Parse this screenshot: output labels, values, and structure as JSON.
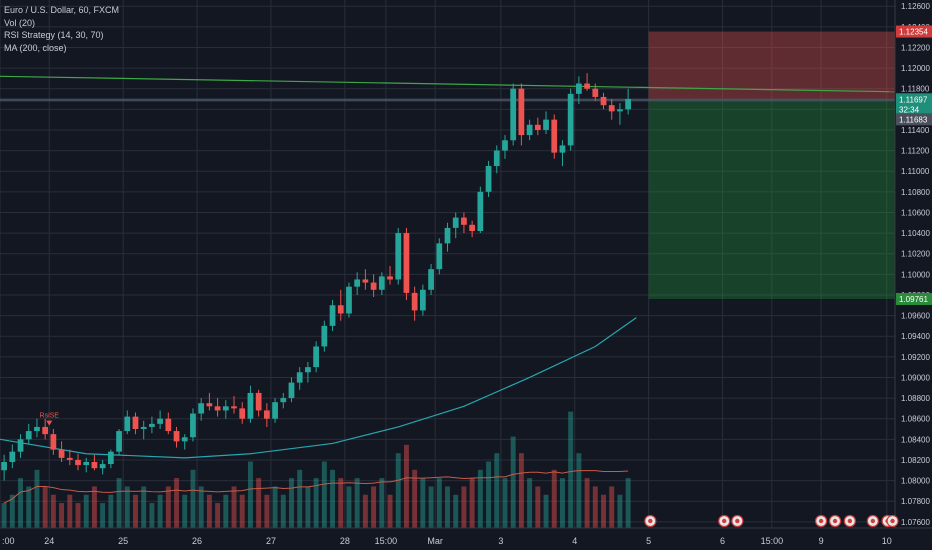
{
  "legend": {
    "symbol_line": "Euro / U.S. Dollar, 60, FXCM",
    "indicator_vol": "Vol (20)",
    "indicator_rsi": "RSI Strategy (14, 30, 70)",
    "indicator_ma": "MA (200, close)"
  },
  "colors": {
    "background": "#131722",
    "grid": "#2a2e39",
    "up_candle": "#26a69a",
    "down_candle": "#ef5350",
    "ma_line": "#26a6b0",
    "trend_line": "#3fa64a",
    "vol_ma": "#c75b4a",
    "stop_zone": "#ef5350",
    "target_zone": "#26a63a",
    "axis_text": "#c8ccd6"
  },
  "chart_data": {
    "type": "candlestick",
    "symbol": "EURUSD",
    "interval": "60",
    "ylim": [
      1.0754,
      1.1266
    ],
    "y_ticks": [
      "1.12600",
      "1.12400",
      "1.12200",
      "1.12000",
      "1.11800",
      "1.11600",
      "1.11400",
      "1.11200",
      "1.11000",
      "1.10800",
      "1.10600",
      "1.10400",
      "1.10200",
      "1.10000",
      "1.09800",
      "1.09600",
      "1.09400",
      "1.09200",
      "1.09000",
      "1.08800",
      "1.08600",
      "1.08400",
      "1.08200",
      "1.08000",
      "1.07800",
      "1.07600"
    ],
    "y_tick_values": [
      1.126,
      1.124,
      1.122,
      1.12,
      1.118,
      1.116,
      1.114,
      1.112,
      1.11,
      1.108,
      1.106,
      1.104,
      1.102,
      1.1,
      1.098,
      1.096,
      1.094,
      1.092,
      1.09,
      1.088,
      1.086,
      1.084,
      1.082,
      1.08,
      1.078,
      1.076
    ],
    "x_labels": [
      {
        "label": ":00",
        "x": -0.5
      },
      {
        "label": "24",
        "x": 5.5
      },
      {
        "label": "25",
        "x": 14.5
      },
      {
        "label": "26",
        "x": 23.5
      },
      {
        "label": "27",
        "x": 32.5
      },
      {
        "label": "28",
        "x": 41.5
      },
      {
        "label": "15:00",
        "x": 46.5
      },
      {
        "label": "Mar",
        "x": 52.5
      },
      {
        "label": "3",
        "x": 60.5
      },
      {
        "label": "4",
        "x": 69.5
      },
      {
        "label": "5",
        "x": 78.5
      },
      {
        "label": "6",
        "x": 87.5
      },
      {
        "label": "15:00",
        "x": 93.5
      },
      {
        "label": "9",
        "x": 99.5
      },
      {
        "label": "10",
        "x": 107.5
      }
    ],
    "x_range": [
      -0.5,
      108.5
    ],
    "candles": [
      [
        1.081,
        1.0825,
        1.08,
        1.0818
      ],
      [
        1.0818,
        1.0835,
        1.0812,
        1.0828
      ],
      [
        1.0828,
        1.0845,
        1.0822,
        1.084
      ],
      [
        1.084,
        1.0855,
        1.0835,
        1.0848
      ],
      [
        1.0848,
        1.086,
        1.0842,
        1.0852
      ],
      [
        1.0852,
        1.086,
        1.084,
        1.0845
      ],
      [
        1.0845,
        1.085,
        1.0825,
        1.083
      ],
      [
        1.083,
        1.0838,
        1.0818,
        1.0822
      ],
      [
        1.0822,
        1.083,
        1.0815,
        1.082
      ],
      [
        1.082,
        1.0826,
        1.081,
        1.0815
      ],
      [
        1.0815,
        1.0822,
        1.0808,
        1.0818
      ],
      [
        1.0818,
        1.0825,
        1.081,
        1.0812
      ],
      [
        1.0812,
        1.082,
        1.0806,
        1.0816
      ],
      [
        1.0816,
        1.083,
        1.0812,
        1.0828
      ],
      [
        1.0828,
        1.085,
        1.0825,
        1.0848
      ],
      [
        1.0848,
        1.0868,
        1.0845,
        1.0862
      ],
      [
        1.0862,
        1.0866,
        1.0845,
        1.085
      ],
      [
        1.085,
        1.0858,
        1.084,
        1.0852
      ],
      [
        1.0852,
        1.0862,
        1.0846,
        1.0855
      ],
      [
        1.0855,
        1.0868,
        1.085,
        1.086
      ],
      [
        1.086,
        1.0866,
        1.0845,
        1.0848
      ],
      [
        1.0848,
        1.0852,
        1.0832,
        1.0838
      ],
      [
        1.0838,
        1.0845,
        1.083,
        1.0842
      ],
      [
        1.0842,
        1.087,
        1.0838,
        1.0865
      ],
      [
        1.0865,
        1.088,
        1.0858,
        1.0875
      ],
      [
        1.0875,
        1.0885,
        1.0868,
        1.0872
      ],
      [
        1.0872,
        1.088,
        1.0862,
        1.0868
      ],
      [
        1.0868,
        1.0878,
        1.086,
        1.0872
      ],
      [
        1.0872,
        1.0882,
        1.0865,
        1.087
      ],
      [
        1.087,
        1.0876,
        1.0855,
        1.086
      ],
      [
        1.086,
        1.0892,
        1.0856,
        1.0885
      ],
      [
        1.0885,
        1.0888,
        1.0862,
        1.0868
      ],
      [
        1.0868,
        1.0875,
        1.0852,
        1.086
      ],
      [
        1.086,
        1.088,
        1.0856,
        1.0876
      ],
      [
        1.0876,
        1.0885,
        1.087,
        1.088
      ],
      [
        1.088,
        1.09,
        1.0876,
        1.0895
      ],
      [
        1.0895,
        1.091,
        1.0888,
        1.0905
      ],
      [
        1.0905,
        1.0915,
        1.0895,
        1.091
      ],
      [
        1.091,
        1.0935,
        1.0905,
        1.093
      ],
      [
        1.093,
        1.0955,
        1.0925,
        1.095
      ],
      [
        1.095,
        1.0975,
        1.0945,
        1.097
      ],
      [
        1.097,
        1.0985,
        1.0955,
        1.0962
      ],
      [
        1.0962,
        1.0992,
        1.0958,
        1.0988
      ],
      [
        1.0988,
        1.1002,
        1.098,
        1.0995
      ],
      [
        1.0995,
        1.1005,
        1.0985,
        1.0992
      ],
      [
        1.0992,
        1.1,
        1.0978,
        1.0985
      ],
      [
        1.0985,
        1.1002,
        1.098,
        1.0998
      ],
      [
        1.0998,
        1.1008,
        1.099,
        1.0995
      ],
      [
        1.0995,
        1.1045,
        1.099,
        1.104
      ],
      [
        1.104,
        1.1045,
        1.0975,
        1.0982
      ],
      [
        1.0982,
        1.0988,
        1.0955,
        1.0965
      ],
      [
        1.0965,
        1.099,
        1.096,
        1.0985
      ],
      [
        1.0985,
        1.101,
        1.098,
        1.1005
      ],
      [
        1.1005,
        1.1035,
        1.1,
        1.103
      ],
      [
        1.103,
        1.105,
        1.1022,
        1.1045
      ],
      [
        1.1045,
        1.106,
        1.1035,
        1.1055
      ],
      [
        1.1055,
        1.106,
        1.104,
        1.1048
      ],
      [
        1.1048,
        1.1052,
        1.1036,
        1.1042
      ],
      [
        1.1042,
        1.1085,
        1.104,
        1.108
      ],
      [
        1.108,
        1.111,
        1.1075,
        1.1105
      ],
      [
        1.1105,
        1.1125,
        1.1098,
        1.112
      ],
      [
        1.112,
        1.1135,
        1.1112,
        1.113
      ],
      [
        1.113,
        1.1185,
        1.1125,
        1.118
      ],
      [
        1.118,
        1.1185,
        1.1125,
        1.1135
      ],
      [
        1.1135,
        1.115,
        1.113,
        1.1145
      ],
      [
        1.1145,
        1.1152,
        1.1135,
        1.114
      ],
      [
        1.114,
        1.1158,
        1.1136,
        1.115
      ],
      [
        1.115,
        1.1155,
        1.1112,
        1.1118
      ],
      [
        1.1118,
        1.113,
        1.1105,
        1.1125
      ],
      [
        1.1125,
        1.118,
        1.112,
        1.1175
      ],
      [
        1.1175,
        1.1192,
        1.1165,
        1.1185
      ],
      [
        1.1185,
        1.1195,
        1.1178,
        1.118
      ],
      [
        1.118,
        1.1185,
        1.1168,
        1.1172
      ],
      [
        1.1172,
        1.1176,
        1.116,
        1.1164
      ],
      [
        1.1164,
        1.117,
        1.115,
        1.1158
      ],
      [
        1.1158,
        1.1166,
        1.1145,
        1.116
      ],
      [
        1.116,
        1.118,
        1.1155,
        1.117
      ]
    ],
    "volume": [
      3,
      4,
      6,
      5,
      7,
      5,
      4,
      3,
      4,
      3,
      4,
      5,
      3,
      4,
      6,
      5,
      4,
      5,
      3,
      4,
      5,
      6,
      4,
      7,
      5,
      4,
      3,
      4,
      5,
      4,
      8,
      6,
      4,
      5,
      4,
      6,
      7,
      5,
      6,
      8,
      7,
      6,
      5,
      6,
      4,
      5,
      6,
      4,
      9,
      10,
      7,
      6,
      5,
      6,
      5,
      4,
      5,
      6,
      7,
      8,
      9,
      6,
      11,
      9,
      6,
      5,
      4,
      7,
      6,
      14,
      9,
      6,
      5,
      4,
      5,
      4,
      6
    ],
    "vol_ylim": [
      0,
      16
    ],
    "ma_200": [
      [
        -0.5,
        1.084
      ],
      [
        10,
        1.0826
      ],
      [
        22,
        1.0822
      ],
      [
        30,
        1.0826
      ],
      [
        40,
        1.0836
      ],
      [
        48,
        1.0852
      ],
      [
        56,
        1.0872
      ],
      [
        64,
        1.09
      ],
      [
        72,
        1.093
      ],
      [
        77,
        1.0958
      ]
    ],
    "trend_line": [
      [
        -0.5,
        1.1192
      ],
      [
        108.5,
        1.1177
      ]
    ],
    "horizontal_lines": [
      1.11697,
      1.11683
    ],
    "position": {
      "x_start": 78.5,
      "x_end": 108.5,
      "entry": 1.11697,
      "stop": 1.12354,
      "target": 1.09761
    },
    "price_labels": [
      {
        "value": "1.12354",
        "y": 1.12354,
        "color": "#d03b3b"
      },
      {
        "value": "1.11697",
        "y": 1.11697,
        "color": "#1e8f7a"
      },
      {
        "value": "32:34",
        "y": 1.11597,
        "color": "#1e8f7a"
      },
      {
        "value": "1.11683",
        "y": 1.11503,
        "color": "#4a4f5c"
      },
      {
        "value": "1.09761",
        "y": 1.09761,
        "color": "#2a8c3a"
      }
    ],
    "annotations": [
      {
        "text": "RsiSE",
        "x": 5.5,
        "y": 1.0861
      }
    ],
    "event_icons": [
      78.7,
      87.7,
      89.3,
      99.5,
      101.2,
      103.0,
      105.8,
      107.6,
      108.2
    ]
  }
}
